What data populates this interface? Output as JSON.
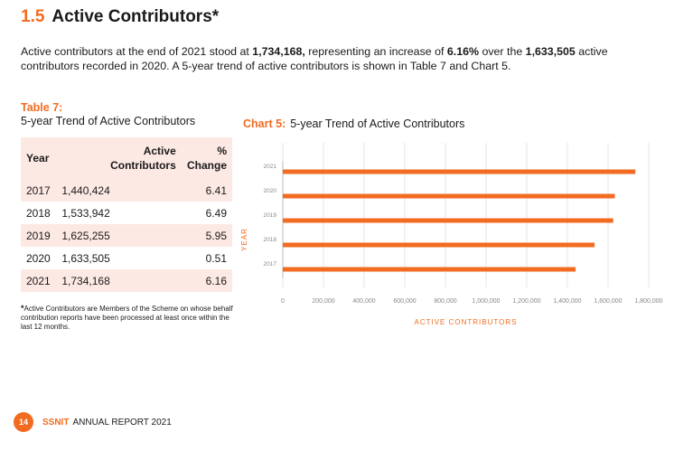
{
  "heading": {
    "number": "1.5",
    "title": "Active Contributors*"
  },
  "intro": {
    "p1": "Active contributors at the end of 2021 stood at ",
    "b1": "1,734,168,",
    "p2": " representing an increase of ",
    "b2": "6.16%",
    "p3": " over the ",
    "b3": "1,633,505",
    "p4": " active contributors recorded in 2020.  A 5-year trend of active contributors is shown in Table 7 and Chart 5."
  },
  "table": {
    "label": "Table 7:",
    "subtitle": "5-year Trend of Active Contributors",
    "headers": [
      "Year",
      "Active Contributors",
      "% Change"
    ],
    "rows": [
      [
        "2017",
        "1,440,424",
        "6.41"
      ],
      [
        "2018",
        "1,533,942",
        "6.49"
      ],
      [
        "2019",
        "1,625,255",
        "5.95"
      ],
      [
        "2020",
        "1,633,505",
        "0.51"
      ],
      [
        "2021",
        "1,734,168",
        "6.16"
      ]
    ]
  },
  "note": {
    "star": "*",
    "text": "Active Contributors are Members of the Scheme on whose behalf contribution reports have been processed at least once within the last 12 months."
  },
  "chart_title": {
    "label": "Chart 5:",
    "text": "5-year Trend of Active Contributors"
  },
  "chart_data": {
    "type": "bar",
    "orientation": "horizontal",
    "categories": [
      "2021",
      "2020",
      "2019",
      "2018",
      "2017"
    ],
    "values": [
      1734168,
      1633505,
      1625255,
      1533942,
      1440424
    ],
    "xlabel": "ACTIVE CONTRIBUTORS",
    "ylabel": "YEAR",
    "xlim": [
      0,
      1800000
    ],
    "xticks": [
      "0",
      "200,000",
      "400,000",
      "600,000",
      "800,000",
      "1,000,000",
      "1,200,000",
      "1,400,000",
      "1,600,000",
      "1,800,000"
    ],
    "grid": true,
    "color": "#f26b21"
  },
  "footer": {
    "page": "14",
    "brand": "SSNIT",
    "text": "ANNUAL REPORT 2021"
  },
  "colors": {
    "accent": "#f26b21",
    "row_shade": "#fde9e4"
  }
}
